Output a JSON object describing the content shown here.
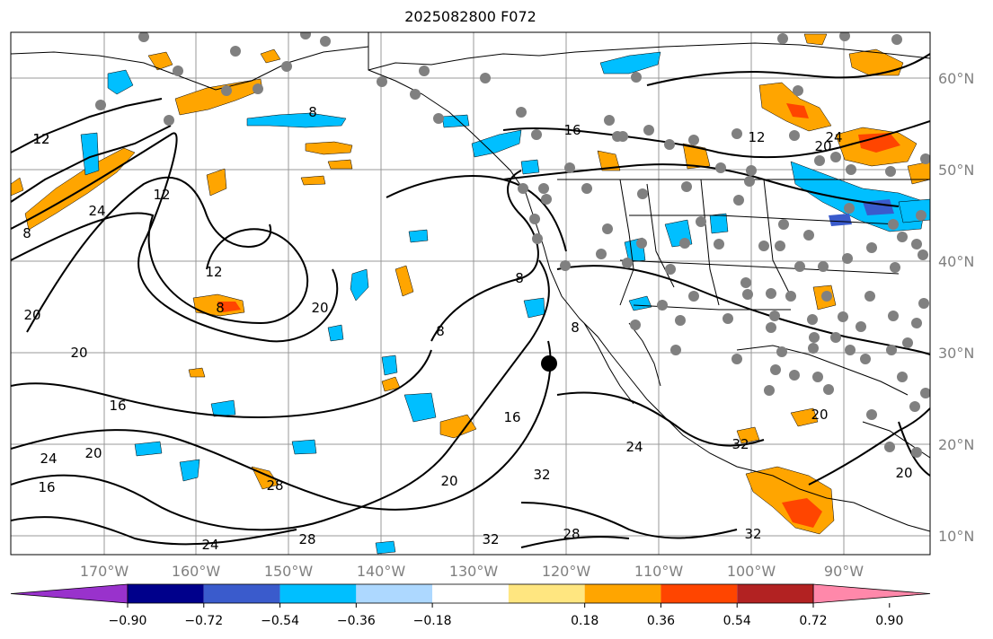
{
  "title": "2025082800 F072",
  "lat_labels": [
    "60°N",
    "50°N",
    "40°N",
    "30°N",
    "20°N",
    "10°N"
  ],
  "lon_labels": [
    "170°W",
    "160°W",
    "150°W",
    "140°W",
    "130°W",
    "120°W",
    "110°W",
    "100°W",
    "90°W"
  ],
  "colorbar": {
    "ticks": [
      "−0.90",
      "−0.72",
      "−0.54",
      "−0.36",
      "−0.18",
      "0.18",
      "0.36",
      "0.54",
      "0.72",
      "0.90"
    ],
    "colors": [
      "#9932cc",
      "#00008b",
      "#3a5bcc",
      "#00bfff",
      "#add8ff",
      "#ffffff",
      "#ffe680",
      "#ffa500",
      "#ff4500",
      "#b22222",
      "#ff88aa"
    ]
  },
  "contour_labels": [
    "12",
    "24",
    "12",
    "8",
    "8",
    "12",
    "8",
    "20",
    "20",
    "8",
    "16",
    "20",
    "20",
    "24",
    "28",
    "24",
    "20",
    "16",
    "32",
    "20",
    "24",
    "28",
    "32",
    "32",
    "28",
    "20",
    "16",
    "12",
    "16",
    "12",
    "20",
    "24",
    "32",
    "8",
    "8"
  ]
}
